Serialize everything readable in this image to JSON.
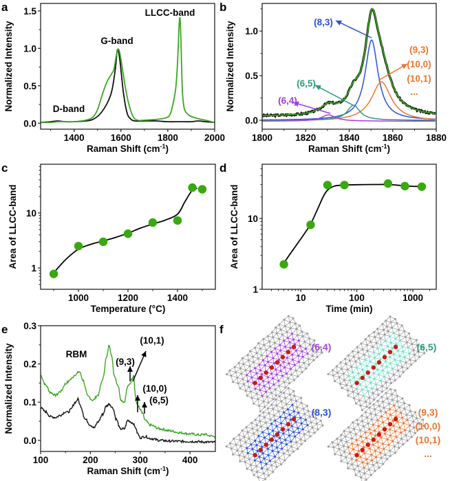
{
  "panels": {
    "a": "a",
    "b": "b",
    "c": "c",
    "d": "d",
    "e": "e",
    "f": "f"
  },
  "colors": {
    "green": "#3aa620",
    "black": "#111111",
    "blue": "#2a4fd8",
    "teal": "#2e9a7a",
    "purple": "#a43de0",
    "orange": "#ec7430",
    "marker": "#3aa80f",
    "cyan_atoms": "#6fe0c8",
    "gray_atoms": "#9a9a9a",
    "red_atoms": "#cc1a10"
  },
  "chart_data": [
    {
      "id": "a",
      "type": "line",
      "title": "",
      "xlabel": "Raman Shift (cm-1)",
      "ylabel": "Normalized Intensity",
      "xlim": [
        1257,
        2000
      ],
      "ylim": [
        -0.08,
        1.6
      ],
      "xticks": [
        1400,
        1600,
        1800,
        2000
      ],
      "xtick_labels": [
        "1400",
        "1600",
        "1800",
        "2000"
      ],
      "yticks": [
        0.0,
        0.5,
        1.0,
        1.5
      ],
      "ytick_labels": [
        "0.0",
        "0.5",
        "1.0",
        "1.5"
      ],
      "annotations": [
        {
          "text": "D-band",
          "x": 1310,
          "y": 0.14
        },
        {
          "text": "G-band",
          "x": 1565,
          "y": 1.08
        },
        {
          "text": "LLCC-band",
          "x": 1830,
          "y": 1.43
        }
      ],
      "series": [
        {
          "name": "black",
          "color_key": "black",
          "x": [
            1257,
            1300,
            1330,
            1360,
            1400,
            1450,
            1480,
            1510,
            1540,
            1560,
            1575,
            1585,
            1595,
            1610,
            1625,
            1640,
            1660,
            1700,
            1750,
            1800,
            1850,
            1900,
            1930,
            1960,
            2000
          ],
          "y": [
            0.01,
            0.02,
            0.03,
            0.02,
            0.02,
            0.03,
            0.05,
            0.12,
            0.26,
            0.42,
            0.7,
            0.98,
            0.85,
            0.42,
            0.15,
            0.06,
            0.03,
            0.03,
            0.03,
            0.02,
            0.02,
            0.02,
            0.03,
            0.02,
            0.01
          ]
        },
        {
          "name": "green",
          "color_key": "green",
          "x": [
            1257,
            1300,
            1330,
            1360,
            1400,
            1450,
            1480,
            1500,
            1520,
            1540,
            1560,
            1570,
            1580,
            1590,
            1600,
            1615,
            1630,
            1650,
            1670,
            1700,
            1750,
            1790,
            1810,
            1825,
            1835,
            1843,
            1848,
            1852,
            1856,
            1862,
            1870,
            1885,
            1900,
            1930,
            1960,
            2000
          ],
          "y": [
            0.01,
            0.01,
            0.02,
            0.02,
            0.02,
            0.04,
            0.08,
            0.18,
            0.38,
            0.55,
            0.66,
            0.72,
            0.9,
            0.99,
            0.85,
            0.55,
            0.3,
            0.1,
            0.04,
            0.04,
            0.05,
            0.07,
            0.12,
            0.3,
            0.5,
            0.9,
            1.3,
            1.4,
            1.1,
            0.45,
            0.2,
            0.12,
            0.09,
            0.06,
            0.04,
            0.01
          ]
        }
      ]
    },
    {
      "id": "b",
      "type": "line",
      "title": "",
      "xlabel": "Raman Shift (cm-1)",
      "ylabel": "Normalized Intensity",
      "xlim": [
        1800,
        1880
      ],
      "ylim": [
        -0.1,
        1.31
      ],
      "xticks": [
        1800,
        1820,
        1840,
        1860,
        1880
      ],
      "xtick_labels": [
        "1800",
        "1820",
        "1840",
        "1860",
        "1880"
      ],
      "yticks": [
        0.0,
        0.5,
        1.0
      ],
      "ytick_labels": [
        "0.0",
        "0.5",
        "1.0"
      ],
      "peaks": [
        {
          "name": "(8,3)",
          "color_key": "blue",
          "center": 1850.3,
          "height": 0.9,
          "hwhm": 3.6,
          "offset": 0.0,
          "base_tail": 0.01
        },
        {
          "name": "(9,3)/(10,0)/(10,1)",
          "color_key": "orange",
          "center": 1854.8,
          "height": 0.44,
          "hwhm": 5.5,
          "offset": -0.01
        },
        {
          "name": "(6,5)",
          "color_key": "teal",
          "center": 1842.0,
          "height": 0.17,
          "hwhm": 3.5,
          "offset": 0.0
        },
        {
          "name": "(6,4)",
          "color_key": "purple",
          "center": 1830.5,
          "height": 0.07,
          "hwhm": 4.0,
          "offset": -0.01
        }
      ],
      "sum_fit": {
        "color_key": "green",
        "baseline": 0.04
      },
      "measured": {
        "color_key": "black"
      },
      "annotations": [
        {
          "text": "(8,3)",
          "color_key": "blue"
        },
        {
          "text": "(6,5)",
          "color_key": "teal"
        },
        {
          "text": "(6,4)",
          "color_key": "purple"
        },
        {
          "text": "(9,3)",
          "color_key": "orange"
        },
        {
          "text": "(10,0)",
          "color_key": "orange"
        },
        {
          "text": "(10,1)",
          "color_key": "orange"
        },
        {
          "text": "...",
          "color_key": "orange"
        }
      ]
    },
    {
      "id": "c",
      "type": "scatter",
      "title": "",
      "xlabel": "Temperature (°C)",
      "ylabel": "Area of LLCC-band",
      "xscale": "linear",
      "yscale": "log",
      "xlim": [
        847,
        1553
      ],
      "ylim": [
        0.41,
        77
      ],
      "xticks": [
        1000,
        1200,
        1400
      ],
      "xtick_labels": [
        "1000",
        "1200",
        "1400"
      ],
      "yticks": [
        1,
        10
      ],
      "ytick_labels": [
        "1",
        "10"
      ],
      "x": [
        900,
        1000,
        1100,
        1200,
        1300,
        1400,
        1460,
        1500
      ],
      "y": [
        0.78,
        2.5,
        3.0,
        4.2,
        6.7,
        7.3,
        29,
        27
      ],
      "fit_curve": {
        "x": [
          900,
          950,
          1000,
          1050,
          1100,
          1150,
          1200,
          1250,
          1300,
          1350,
          1400,
          1430,
          1460,
          1480
        ],
        "y": [
          0.82,
          1.45,
          2.2,
          2.7,
          3.1,
          3.6,
          4.3,
          5.3,
          6.3,
          7.4,
          9.5,
          16,
          26,
          28
        ]
      }
    },
    {
      "id": "d",
      "type": "scatter",
      "title": "",
      "xlabel": "Time (min)",
      "ylabel": "Area of LLCC-band",
      "xscale": "log",
      "yscale": "log",
      "xlim": [
        2.05,
        2610
      ],
      "ylim": [
        1,
        58
      ],
      "xticks": [
        10,
        100,
        1000
      ],
      "xtick_labels": [
        "10",
        "100",
        "1000"
      ],
      "yticks": [
        1,
        10
      ],
      "ytick_labels": [
        "1",
        "10"
      ],
      "x": [
        5,
        15,
        30,
        60,
        360,
        720,
        1440
      ],
      "y": [
        2.25,
        8.1,
        29.5,
        29.5,
        31,
        28.5,
        28
      ],
      "fit_curve": {
        "x": [
          5,
          8,
          12,
          15,
          20,
          25,
          30,
          40,
          60,
          100,
          200,
          360,
          500,
          720,
          1000,
          1440
        ],
        "y": [
          2.35,
          4.0,
          6.3,
          8.3,
          13.5,
          20,
          25,
          28.5,
          29.5,
          29.8,
          30,
          30,
          29.5,
          28.8,
          28.3,
          28.2
        ]
      }
    },
    {
      "id": "e",
      "type": "line",
      "title": "",
      "xlabel": "Raman Shift (cm-1)",
      "ylabel": "Normalized Intensity",
      "xlim": [
        100,
        451
      ],
      "ylim": [
        -0.029,
        0.3
      ],
      "xticks": [
        100,
        200,
        300,
        400
      ],
      "xtick_labels": [
        "100",
        "200",
        "300",
        "400"
      ],
      "yticks": [
        0.0,
        0.1,
        0.2,
        0.3
      ],
      "ytick_labels": [
        "0.0",
        "0.1",
        "0.2",
        "0.3"
      ],
      "annotations": [
        {
          "text": "RBM"
        },
        {
          "text": "(9,3)"
        },
        {
          "text": "(10,1)"
        },
        {
          "text": "(10,0)"
        },
        {
          "text": "(6,5)"
        }
      ],
      "series": [
        {
          "name": "green",
          "color_key": "green",
          "x": [
            100,
            110,
            120,
            130,
            140,
            150,
            155,
            160,
            170,
            178,
            185,
            195,
            205,
            215,
            225,
            232,
            238,
            242,
            248,
            255,
            262,
            268,
            275,
            280,
            284,
            287,
            290,
            293,
            296,
            300,
            305,
            310,
            320,
            340,
            360,
            380,
            400,
            420,
            430,
            440,
            451
          ],
          "y": [
            0.17,
            0.145,
            0.125,
            0.118,
            0.128,
            0.148,
            0.153,
            0.16,
            0.172,
            0.18,
            0.158,
            0.115,
            0.105,
            0.118,
            0.16,
            0.215,
            0.25,
            0.225,
            0.17,
            0.145,
            0.105,
            0.1,
            0.14,
            0.15,
            0.162,
            0.172,
            0.12,
            0.095,
            0.09,
            0.08,
            0.07,
            0.052,
            0.04,
            0.03,
            0.025,
            0.02,
            0.017,
            0.014,
            0.016,
            0.012,
            0.01
          ]
        },
        {
          "name": "black",
          "color_key": "black",
          "x": [
            100,
            110,
            120,
            130,
            140,
            150,
            155,
            160,
            170,
            175,
            180,
            190,
            200,
            208,
            215,
            225,
            232,
            238,
            245,
            252,
            260,
            268,
            275,
            285,
            290,
            295,
            300,
            310,
            320,
            340,
            360,
            400,
            451
          ],
          "y": [
            0.085,
            0.075,
            0.062,
            0.06,
            0.066,
            0.075,
            0.073,
            0.08,
            0.1,
            0.108,
            0.09,
            0.055,
            0.04,
            0.033,
            0.048,
            0.068,
            0.09,
            0.095,
            0.085,
            0.055,
            0.03,
            0.03,
            0.052,
            0.046,
            0.035,
            0.018,
            0.007,
            0.01,
            0.005,
            0.0,
            -0.002,
            -0.003,
            -0.005
          ]
        }
      ]
    }
  ],
  "panel_f": {
    "structures": [
      {
        "label": "(6,4)",
        "color_key": "purple"
      },
      {
        "label": "(6,5)",
        "color_key": "teal",
        "atom_color_key": "cyan_atoms"
      },
      {
        "label": "(8,3)",
        "color_key": "blue"
      },
      {
        "label_lines": [
          "(9,3)",
          "(10,0)",
          "(10,1)",
          "..."
        ],
        "color_key": "orange"
      }
    ]
  }
}
